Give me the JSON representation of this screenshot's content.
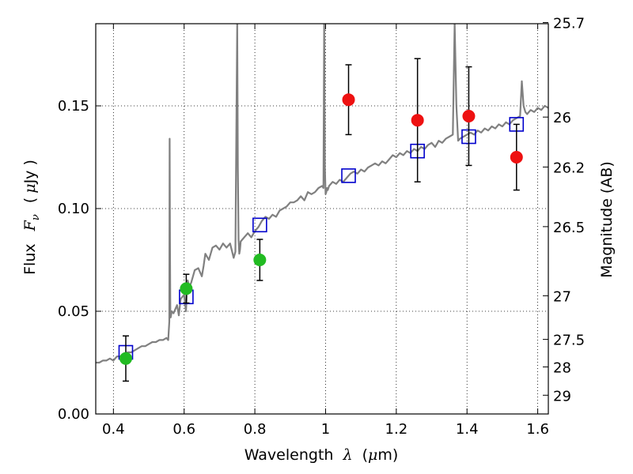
{
  "chart_data": {
    "type": "scatter",
    "title": "",
    "xlabel": "Wavelength",
    "xlabel_symbol": "λ",
    "xlabel_unit_open": "(",
    "xlabel_unit_symbol": "μ",
    "xlabel_unit_rest": "m)",
    "ylabel": "Flux",
    "ylabel_symbol": "F",
    "ylabel_subscript": "ν",
    "ylabel_unit_open": "(",
    "ylabel_unit_symbol": "μ",
    "ylabel_unit_rest": "Jy )",
    "y2label": "Magnitude (AB)",
    "xlim": [
      0.35,
      1.63
    ],
    "ylim": [
      0.0,
      0.19
    ],
    "grid": true,
    "x_ticks": [
      {
        "value": 0.4,
        "label": "0.4"
      },
      {
        "value": 0.6,
        "label": "0.6"
      },
      {
        "value": 0.8,
        "label": "0.8"
      },
      {
        "value": 1.0,
        "label": "1"
      },
      {
        "value": 1.2,
        "label": "1.2"
      },
      {
        "value": 1.4,
        "label": "1.4"
      },
      {
        "value": 1.6,
        "label": "1.6"
      }
    ],
    "y_ticks": [
      {
        "value": 0.0,
        "label": "0.00"
      },
      {
        "value": 0.05,
        "label": "0.05"
      },
      {
        "value": 0.1,
        "label": "0.10"
      },
      {
        "value": 0.15,
        "label": "0.15"
      }
    ],
    "y2_ticks": [
      {
        "mag": 25.7,
        "label": "25.7"
      },
      {
        "mag": 26.0,
        "label": "26"
      },
      {
        "mag": 26.2,
        "label": "26.2"
      },
      {
        "mag": 26.5,
        "label": "26.5"
      },
      {
        "mag": 27.0,
        "label": "27"
      },
      {
        "mag": 27.5,
        "label": "27.5"
      },
      {
        "mag": 28.0,
        "label": "28"
      },
      {
        "mag": 29.0,
        "label": "29"
      }
    ],
    "series": [
      {
        "name": "model-spectrum",
        "kind": "line",
        "color": "#808080",
        "x": [
          0.35,
          0.36,
          0.37,
          0.38,
          0.39,
          0.4,
          0.41,
          0.42,
          0.43,
          0.44,
          0.45,
          0.46,
          0.47,
          0.48,
          0.49,
          0.5,
          0.51,
          0.52,
          0.53,
          0.54,
          0.55,
          0.555,
          0.558,
          0.559,
          0.56,
          0.561,
          0.562,
          0.565,
          0.57,
          0.575,
          0.58,
          0.585,
          0.59,
          0.595,
          0.6,
          0.605,
          0.61,
          0.615,
          0.62,
          0.63,
          0.64,
          0.65,
          0.655,
          0.66,
          0.67,
          0.68,
          0.69,
          0.7,
          0.71,
          0.72,
          0.73,
          0.74,
          0.745,
          0.75,
          0.752,
          0.754,
          0.756,
          0.758,
          0.76,
          0.77,
          0.78,
          0.79,
          0.8,
          0.81,
          0.82,
          0.83,
          0.84,
          0.85,
          0.86,
          0.87,
          0.88,
          0.89,
          0.9,
          0.91,
          0.92,
          0.93,
          0.94,
          0.95,
          0.96,
          0.97,
          0.98,
          0.99,
          0.994,
          0.996,
          0.998,
          1.0,
          1.002,
          1.004,
          1.006,
          1.01,
          1.02,
          1.03,
          1.04,
          1.05,
          1.06,
          1.07,
          1.08,
          1.09,
          1.1,
          1.11,
          1.12,
          1.13,
          1.14,
          1.15,
          1.16,
          1.17,
          1.18,
          1.19,
          1.2,
          1.21,
          1.22,
          1.23,
          1.24,
          1.25,
          1.26,
          1.27,
          1.28,
          1.29,
          1.3,
          1.31,
          1.32,
          1.33,
          1.34,
          1.35,
          1.36,
          1.365,
          1.37,
          1.375,
          1.38,
          1.39,
          1.4,
          1.41,
          1.42,
          1.43,
          1.44,
          1.45,
          1.46,
          1.47,
          1.48,
          1.49,
          1.5,
          1.51,
          1.52,
          1.53,
          1.54,
          1.55,
          1.555,
          1.56,
          1.565,
          1.57,
          1.58,
          1.59,
          1.6,
          1.61,
          1.62,
          1.63
        ],
        "y": [
          0.025,
          0.025,
          0.026,
          0.026,
          0.027,
          0.026,
          0.028,
          0.028,
          0.029,
          0.03,
          0.03,
          0.031,
          0.032,
          0.033,
          0.033,
          0.034,
          0.035,
          0.035,
          0.036,
          0.036,
          0.037,
          0.036,
          0.045,
          0.134,
          0.085,
          0.048,
          0.047,
          0.05,
          0.049,
          0.051,
          0.053,
          0.048,
          0.056,
          0.057,
          0.058,
          0.05,
          0.065,
          0.062,
          0.064,
          0.07,
          0.071,
          0.067,
          0.072,
          0.078,
          0.075,
          0.081,
          0.082,
          0.08,
          0.083,
          0.081,
          0.083,
          0.076,
          0.079,
          0.19,
          0.12,
          0.085,
          0.078,
          0.08,
          0.084,
          0.086,
          0.088,
          0.086,
          0.089,
          0.091,
          0.094,
          0.096,
          0.095,
          0.097,
          0.096,
          0.099,
          0.1,
          0.101,
          0.103,
          0.103,
          0.104,
          0.106,
          0.104,
          0.108,
          0.107,
          0.108,
          0.11,
          0.111,
          0.11,
          0.19,
          0.12,
          0.107,
          0.108,
          0.11,
          0.109,
          0.111,
          0.113,
          0.112,
          0.114,
          0.113,
          0.115,
          0.117,
          0.118,
          0.117,
          0.119,
          0.118,
          0.12,
          0.121,
          0.122,
          0.121,
          0.123,
          0.122,
          0.124,
          0.126,
          0.125,
          0.127,
          0.126,
          0.128,
          0.127,
          0.129,
          0.128,
          0.13,
          0.129,
          0.131,
          0.132,
          0.13,
          0.133,
          0.132,
          0.134,
          0.135,
          0.136,
          0.19,
          0.15,
          0.133,
          0.134,
          0.135,
          0.136,
          0.137,
          0.136,
          0.138,
          0.137,
          0.139,
          0.138,
          0.14,
          0.139,
          0.141,
          0.14,
          0.142,
          0.141,
          0.143,
          0.144,
          0.145,
          0.162,
          0.15,
          0.147,
          0.146,
          0.148,
          0.147,
          0.149,
          0.148,
          0.15,
          0.149
        ],
        "label": ""
      },
      {
        "name": "model-photometry",
        "kind": "open-square",
        "color": "#0000cc",
        "x": [
          0.435,
          0.606,
          0.814,
          1.065,
          1.26,
          1.405,
          1.54
        ],
        "y": [
          0.03,
          0.057,
          0.092,
          0.116,
          0.128,
          0.135,
          0.141
        ],
        "label": ""
      },
      {
        "name": "optical-detections",
        "kind": "point",
        "color": "#22bb22",
        "x": [
          0.435,
          0.606,
          0.814
        ],
        "y": [
          0.027,
          0.061,
          0.075
        ],
        "err": [
          0.011,
          0.007,
          0.01
        ],
        "label": ""
      },
      {
        "name": "nir-detections",
        "kind": "point",
        "color": "#ee1111",
        "x": [
          1.065,
          1.26,
          1.405,
          1.54
        ],
        "y": [
          0.153,
          0.143,
          0.145,
          0.125
        ],
        "err": [
          0.017,
          0.03,
          0.024,
          0.016
        ],
        "label": ""
      }
    ]
  }
}
